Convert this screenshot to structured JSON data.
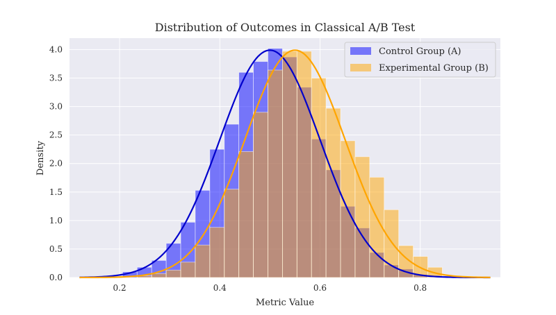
{
  "chart_data": {
    "type": "bar",
    "title": "Distribution of Outcomes in Classical A/B Test",
    "xlabel": "Metric Value",
    "ylabel": "Density",
    "xlim": [
      0.1,
      0.96
    ],
    "ylim": [
      0,
      4.2
    ],
    "xticks": [
      0.2,
      0.4,
      0.6,
      0.8
    ],
    "xtick_labels": [
      "0.2",
      "0.4",
      "0.6",
      "0.8"
    ],
    "yticks": [
      0,
      0.5,
      1.0,
      1.5,
      2.0,
      2.5,
      3.0,
      3.5,
      4.0
    ],
    "ytick_labels": [
      "0.0",
      "0.5",
      "1.0",
      "1.5",
      "2.0",
      "2.5",
      "3.0",
      "3.5",
      "4.0"
    ],
    "grid": true,
    "legend_position": "top-right",
    "bin_width": 0.029,
    "series": [
      {
        "name": "Control Group (A)",
        "kind": "histogram",
        "color": "#0000ff",
        "alpha": 0.5,
        "bin_starts": [
          0.206,
          0.235,
          0.264,
          0.293,
          0.322,
          0.351,
          0.38,
          0.409,
          0.438,
          0.467,
          0.496,
          0.525,
          0.554,
          0.583,
          0.612,
          0.641,
          0.67,
          0.699,
          0.728,
          0.757,
          0.786
        ],
        "values": [
          0.1,
          0.18,
          0.3,
          0.6,
          0.97,
          1.53,
          2.25,
          2.69,
          3.6,
          3.79,
          4.02,
          3.87,
          3.34,
          2.43,
          1.89,
          1.25,
          0.87,
          0.44,
          0.22,
          0.15,
          0.05
        ]
      },
      {
        "name": "Experimental Group (B)",
        "kind": "histogram",
        "color": "#ffa500",
        "alpha": 0.5,
        "bin_starts": [
          0.235,
          0.264,
          0.293,
          0.322,
          0.351,
          0.38,
          0.409,
          0.438,
          0.467,
          0.496,
          0.525,
          0.554,
          0.583,
          0.612,
          0.641,
          0.67,
          0.699,
          0.728,
          0.757,
          0.786,
          0.815
        ],
        "values": [
          0.03,
          0.07,
          0.13,
          0.27,
          0.57,
          0.88,
          1.55,
          2.21,
          2.9,
          3.64,
          3.97,
          3.97,
          3.5,
          2.97,
          2.4,
          2.12,
          1.76,
          1.19,
          0.56,
          0.37,
          0.18
        ]
      },
      {
        "name": "Control Group (A) density",
        "kind": "line",
        "color": "#0000cc",
        "mean": 0.5,
        "sd": 0.1,
        "x_range": [
          0.12,
          0.94
        ]
      },
      {
        "name": "Experimental Group (B) density",
        "kind": "line",
        "color": "#ffa500",
        "mean": 0.55,
        "sd": 0.1,
        "x_range": [
          0.12,
          0.94
        ]
      }
    ],
    "legend": {
      "entries": [
        {
          "label": "Control Group (A)",
          "color": "#0000ff"
        },
        {
          "label": "Experimental Group (B)",
          "color": "#ffa500"
        }
      ]
    }
  }
}
